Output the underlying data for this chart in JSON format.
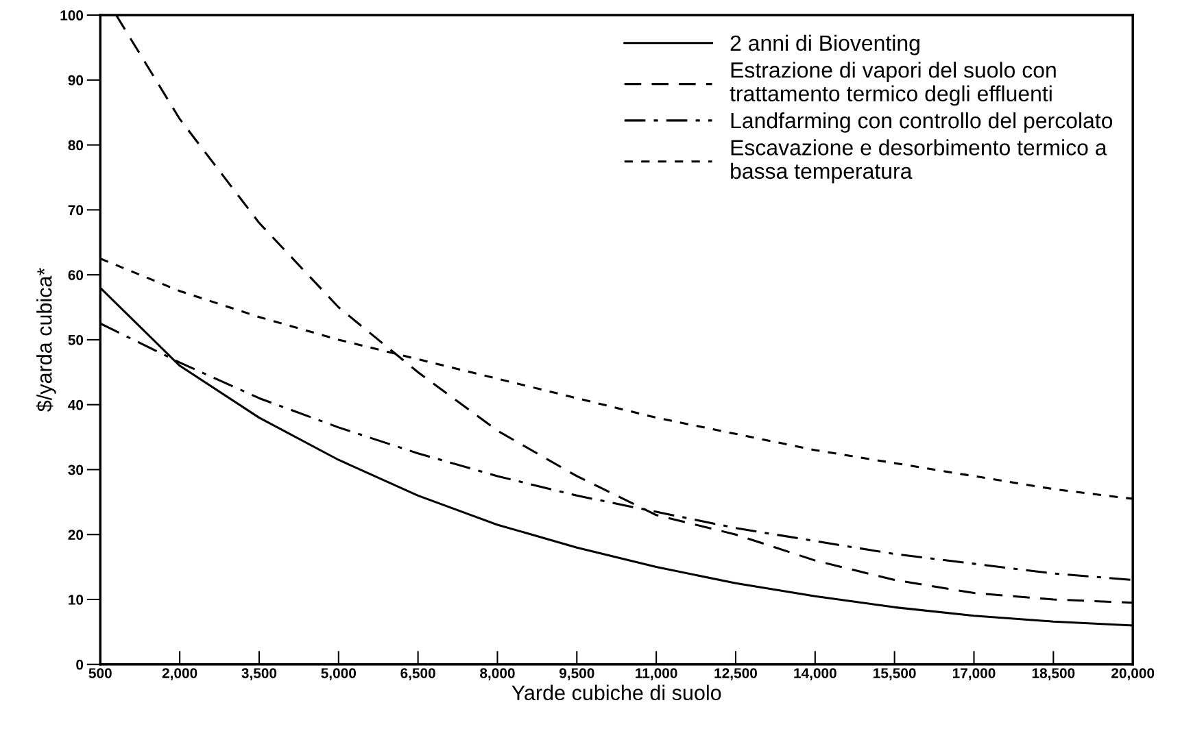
{
  "chart_data": {
    "type": "line",
    "xlabel": "Yarde cubiche di suolo",
    "ylabel": "$/yarda cubica*",
    "xlim": [
      500,
      20000
    ],
    "xticks": [
      {
        "value": 500,
        "label": "500"
      },
      {
        "value": 2000,
        "label": "2,000"
      },
      {
        "value": 3500,
        "label": "3,500"
      },
      {
        "value": 5000,
        "label": "5,000"
      },
      {
        "value": 6500,
        "label": "6,500"
      },
      {
        "value": 8000,
        "label": "8,000"
      },
      {
        "value": 9500,
        "label": "9,500"
      },
      {
        "value": 11000,
        "label": "11,000"
      },
      {
        "value": 12500,
        "label": "12,500"
      },
      {
        "value": 14000,
        "label": "14,000"
      },
      {
        "value": 15500,
        "label": "15,500"
      },
      {
        "value": 17000,
        "label": "17,000"
      },
      {
        "value": 18500,
        "label": "18,500"
      },
      {
        "value": 20000,
        "label": "20,000"
      }
    ],
    "ylim": [
      0,
      100
    ],
    "yticks": [
      0,
      10,
      20,
      30,
      40,
      50,
      60,
      70,
      80,
      90,
      100
    ],
    "grid": false,
    "legend": "top right",
    "marker": "none",
    "series": [
      {
        "name": "2 anni di Bioventing",
        "color": "#000000",
        "line_style": "solid",
        "x": [
          500,
          2000,
          3500,
          5000,
          6500,
          8000,
          9500,
          11000,
          12500,
          14000,
          15500,
          17000,
          18500,
          20000
        ],
        "values": [
          58,
          46,
          38,
          31.5,
          26,
          21.5,
          18,
          15,
          12.5,
          10.5,
          8.8,
          7.5,
          6.6,
          6
        ]
      },
      {
        "name": "Estrazione di vapori del suolo con\ntrattamento termico degli effluenti",
        "color": "#000000",
        "line_style": "dashed",
        "x": [
          800,
          2000,
          3500,
          5000,
          6500,
          8000,
          9500,
          11000,
          12500,
          14000,
          15500,
          17000,
          18500,
          20000
        ],
        "values": [
          100,
          84,
          68,
          55,
          45,
          36,
          29,
          23,
          20,
          16,
          13,
          11,
          10,
          9.5
        ]
      },
      {
        "name": "Landfarming con controllo del percolato",
        "color": "#000000",
        "line_style": "dashdot",
        "x": [
          500,
          2000,
          3500,
          5000,
          6500,
          8000,
          9500,
          11000,
          12500,
          14000,
          15500,
          17000,
          18500,
          20000
        ],
        "values": [
          52.5,
          46.5,
          41,
          36.5,
          32.5,
          29,
          26,
          23.5,
          21,
          19,
          17,
          15.5,
          14,
          13
        ]
      },
      {
        "name": "Escavazione e desorbimento termico a\nbassa temperatura",
        "color": "#000000",
        "line_style": "dotted",
        "x": [
          500,
          2000,
          3500,
          5000,
          6500,
          8000,
          9500,
          11000,
          12500,
          14000,
          15500,
          17000,
          18500,
          20000
        ],
        "values": [
          62.5,
          57.5,
          53.5,
          50,
          47,
          44,
          41,
          38,
          35.5,
          33,
          31,
          29,
          27,
          25.5
        ]
      }
    ]
  }
}
